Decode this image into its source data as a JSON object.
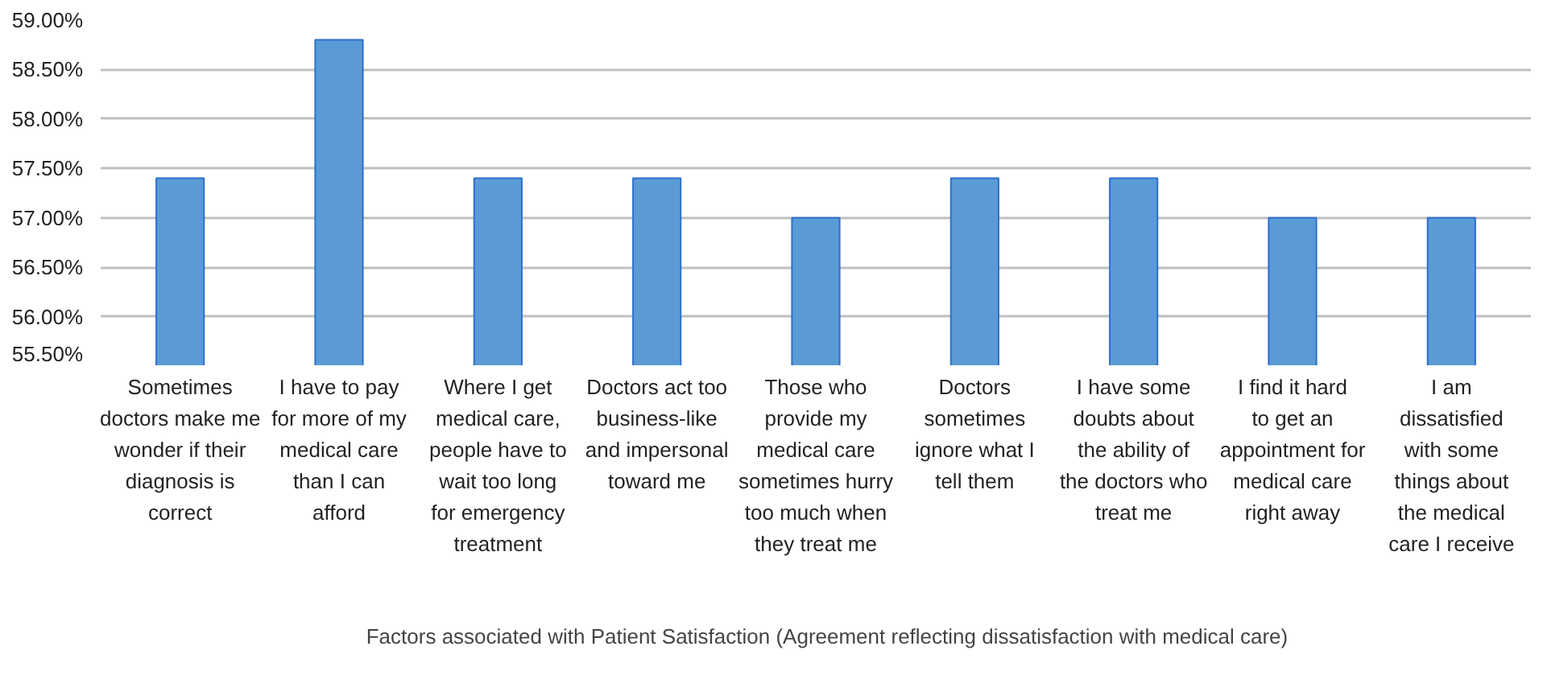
{
  "chart_data": {
    "type": "bar",
    "categories": [
      "Sometimes doctors make me wonder if their diagnosis is correct",
      "I have to pay for more of my medical care than I can afford",
      "Where I get medical care, people have to wait too long for emergency treatment",
      "Doctors act too business-like and impersonal toward me",
      "Those who provide my medical care sometimes hurry too much when they treat me",
      "Doctors sometimes ignore what I tell them",
      "I have some doubts about the ability of the doctors who treat me",
      "I find it hard to get an appointment for medical care right away",
      "I am dissatisfied with some things about the medical care I receive"
    ],
    "series": [
      {
        "name": "Factors associated with Patient Satisfaction (Agreement reflecting dissatisfaction with medical care)",
        "color": "#5b9bd5",
        "values": [
          57.4,
          58.8,
          57.4,
          57.4,
          57.0,
          57.4,
          57.4,
          57.0,
          57.0
        ]
      }
    ],
    "ylim": [
      55.5,
      59.0
    ],
    "yticks": [
      {
        "value": 55.5,
        "label": "55.50%"
      },
      {
        "value": 56.0,
        "label": "56.00%"
      },
      {
        "value": 56.5,
        "label": "56.50%"
      },
      {
        "value": 57.0,
        "label": "57.00%"
      },
      {
        "value": 57.5,
        "label": "57.50%"
      },
      {
        "value": 58.0,
        "label": "58.00%"
      },
      {
        "value": 58.5,
        "label": "58.50%"
      },
      {
        "value": 59.0,
        "label": "59.00%"
      }
    ],
    "grid": "y",
    "legend": "bottom"
  }
}
